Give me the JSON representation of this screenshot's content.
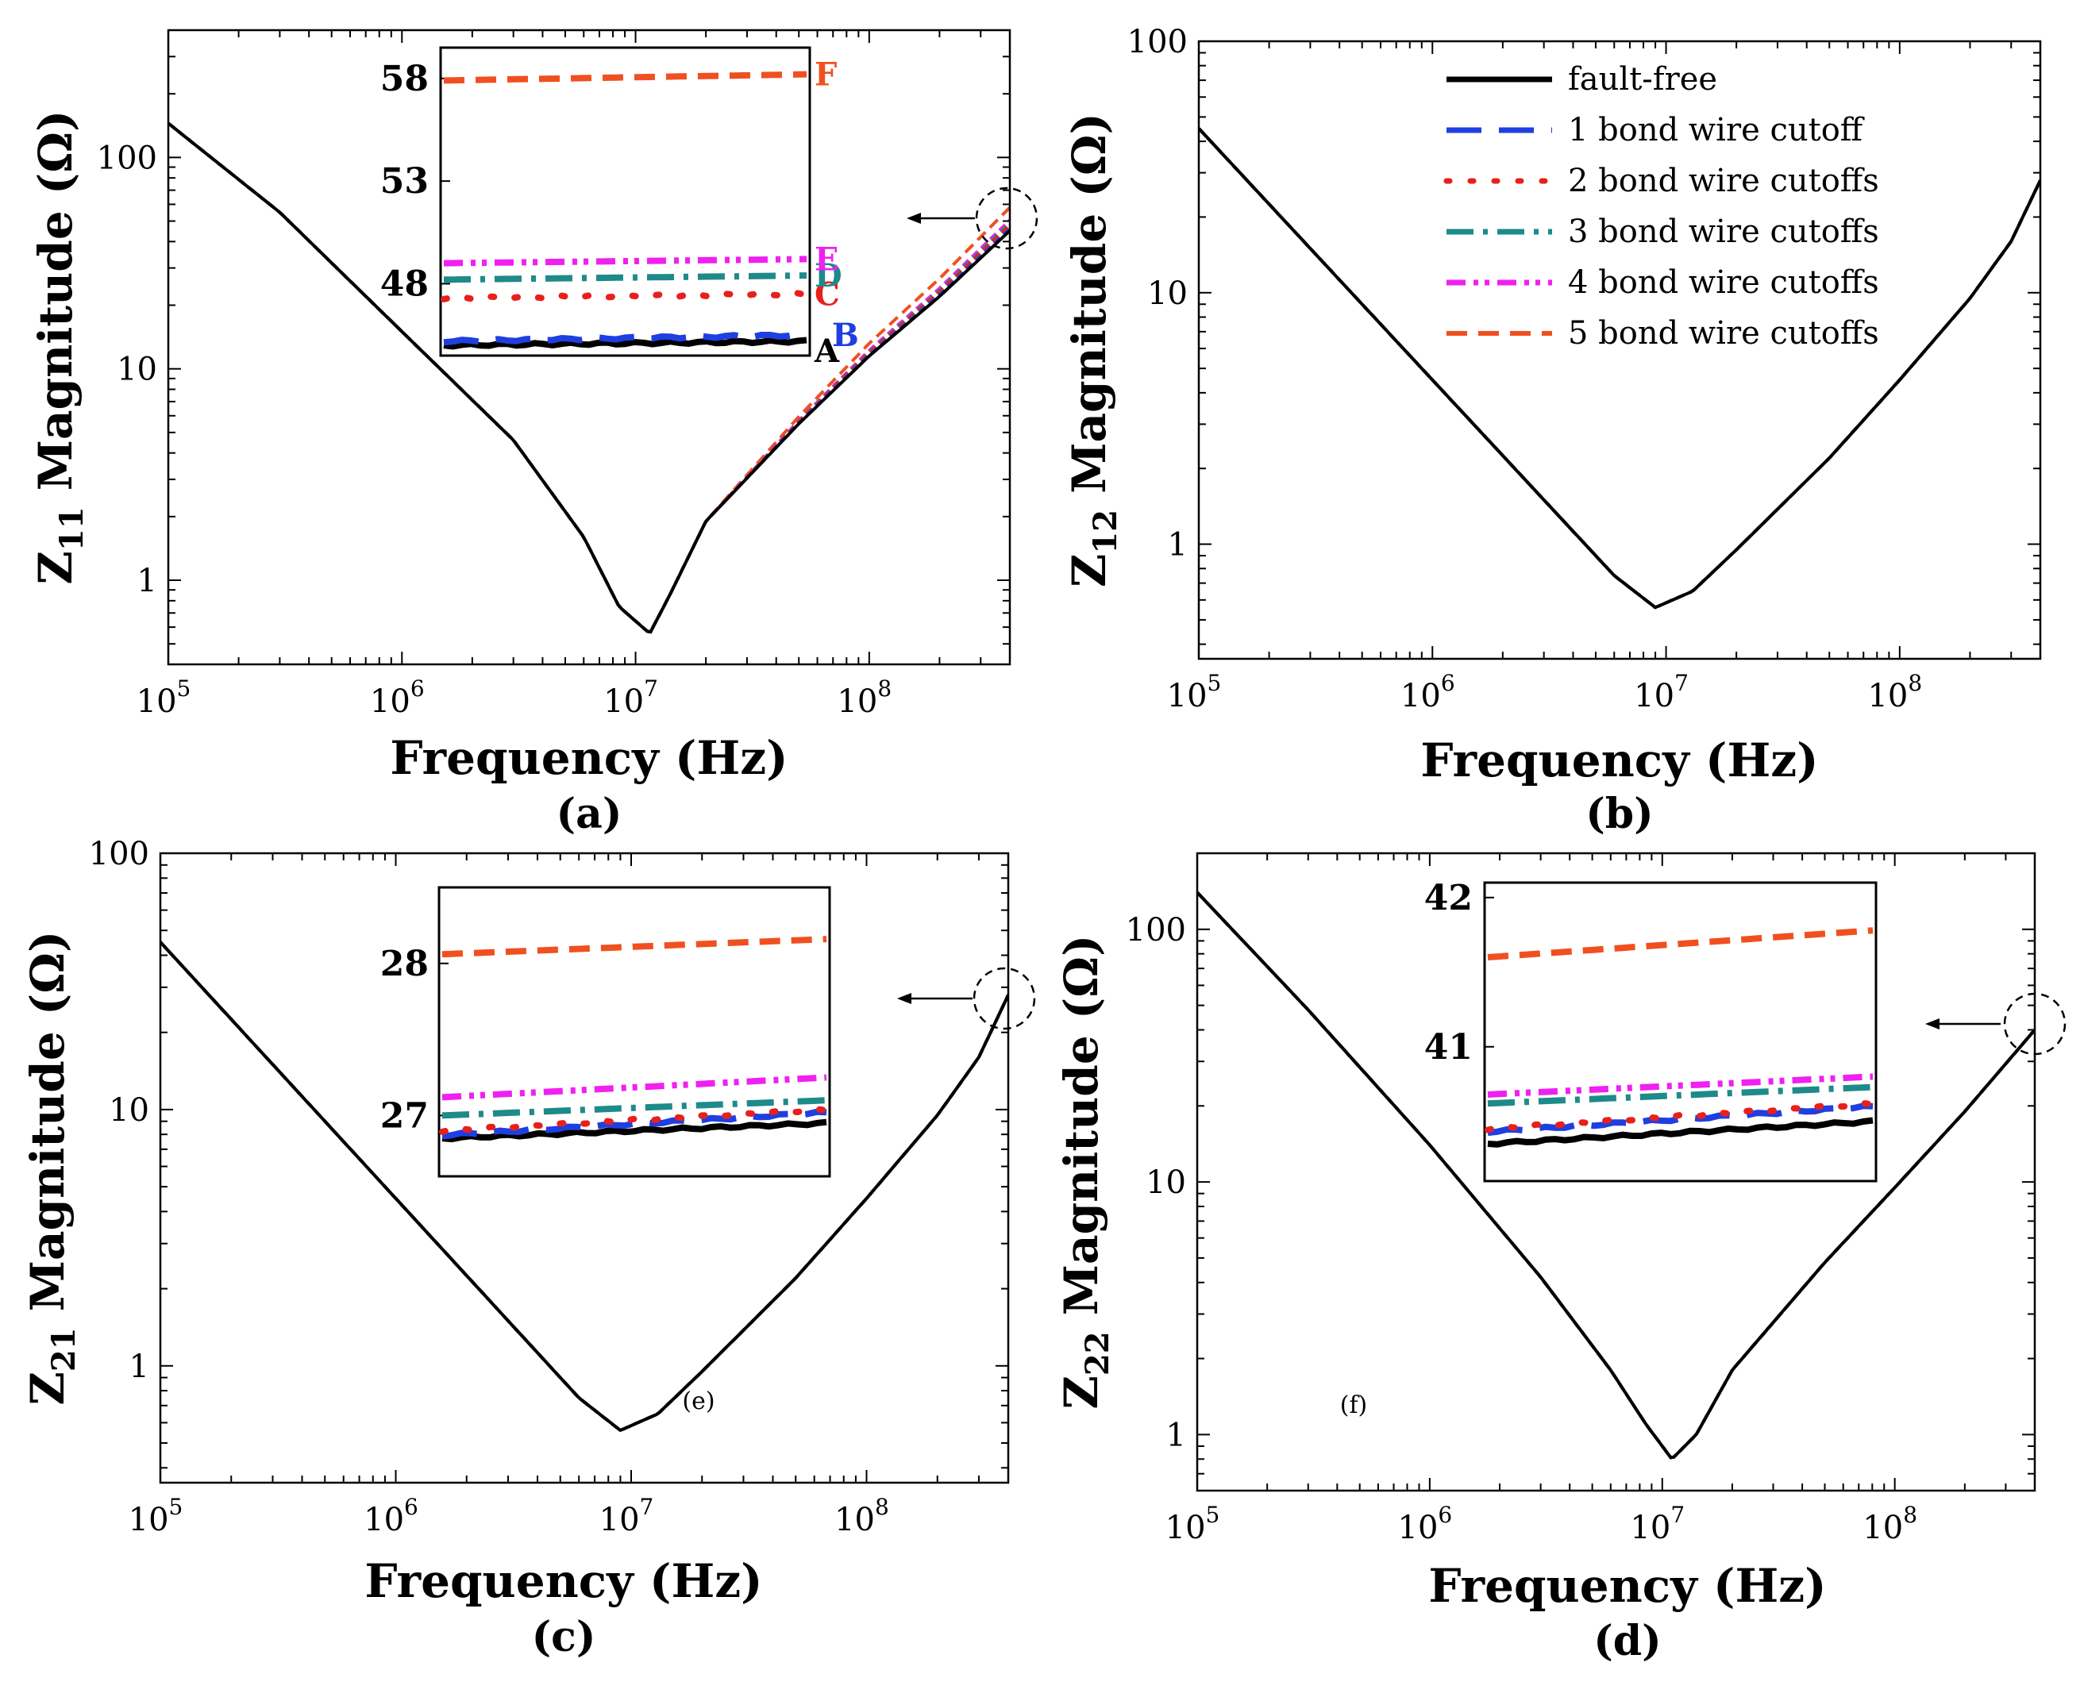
{
  "figure": {
    "legend": {
      "entries": [
        {
          "name": "fault-free",
          "color": "#000000"
        },
        {
          "name": "1 bond wire cutoff",
          "color": "#1f3fe0"
        },
        {
          "name": "2 bond wire cutoffs",
          "color": "#e8201c"
        },
        {
          "name": "3 bond wire cutoffs",
          "color": "#1e8a8a"
        },
        {
          "name": "4 bond wire cutoffs",
          "color": "#f020f0"
        },
        {
          "name": "5 bond wire cutoffs",
          "color": "#f05020"
        }
      ]
    }
  },
  "chart_data": [
    {
      "type": "line",
      "panel_label": "(a)",
      "ylabel_main": "Z",
      "ylabel_sub": "11",
      "ylabel_rest": " Magnitude (Ω)",
      "xlabel": "Frequency (Hz)",
      "x_scale": "log",
      "y_scale": "log",
      "xlim": [
        100000,
        400000000
      ],
      "ylim": [
        0.4,
        400
      ],
      "x_ticks": [
        {
          "value": 100000,
          "label": "10",
          "exp": "5"
        },
        {
          "value": 1000000,
          "label": "10",
          "exp": "6"
        },
        {
          "value": 10000000,
          "label": "10",
          "exp": "7"
        },
        {
          "value": 100000000,
          "label": "10",
          "exp": "8"
        }
      ],
      "y_ticks": [
        {
          "value": 1,
          "label": "1"
        },
        {
          "value": 10,
          "label": "10"
        },
        {
          "value": 100,
          "label": "100"
        }
      ],
      "base_curve": {
        "x": [
          100000,
          300000,
          1000000,
          3000000,
          6000000,
          8500000,
          11500000,
          14000000,
          20000000,
          50000000,
          100000000,
          200000000,
          400000000
        ],
        "y": [
          145,
          55,
          15,
          4.6,
          1.6,
          0.75,
          0.56,
          0.85,
          1.9,
          5.5,
          11.5,
          22,
          45
        ]
      },
      "series_end_values": [
        45,
        46,
        48,
        49,
        50.5,
        58
      ],
      "series_deviation_start": 20000000,
      "inset": {
        "yticks": [
          {
            "value": 48,
            "label": "48"
          },
          {
            "value": 53,
            "label": "53"
          },
          {
            "value": 58,
            "label": "58"
          }
        ],
        "ylim": [
          44.5,
          59.5
        ],
        "series": [
          {
            "marker": "A",
            "y_start": 45.0,
            "y_end": 45.2
          },
          {
            "marker": "B",
            "y_start": 45.2,
            "y_end": 45.5
          },
          {
            "marker": "C",
            "y_start": 47.3,
            "y_end": 47.5
          },
          {
            "marker": "D",
            "y_start": 48.2,
            "y_end": 48.4
          },
          {
            "marker": "E",
            "y_start": 49.0,
            "y_end": 49.2
          },
          {
            "marker": "F",
            "y_start": 57.9,
            "y_end": 58.2
          }
        ]
      },
      "annotation": ""
    },
    {
      "type": "line",
      "panel_label": "(b)",
      "ylabel_main": "Z",
      "ylabel_sub": "12",
      "ylabel_rest": " Magnitude (Ω)",
      "xlabel": "Frequency (Hz)",
      "x_scale": "log",
      "y_scale": "log",
      "xlim": [
        100000,
        400000000
      ],
      "ylim": [
        0.35,
        100
      ],
      "x_ticks": [
        {
          "value": 100000,
          "label": "10",
          "exp": "5"
        },
        {
          "value": 1000000,
          "label": "10",
          "exp": "6"
        },
        {
          "value": 10000000,
          "label": "10",
          "exp": "7"
        },
        {
          "value": 100000000,
          "label": "10",
          "exp": "8"
        }
      ],
      "y_ticks": [
        {
          "value": 1,
          "label": "1"
        },
        {
          "value": 10,
          "label": "10"
        },
        {
          "value": 100,
          "label": "100"
        }
      ],
      "base_curve": {
        "x": [
          100000,
          300000,
          1000000,
          3000000,
          6000000,
          9000000,
          13000000,
          20000000,
          50000000,
          100000000,
          200000000,
          300000000,
          400000000
        ],
        "y": [
          45,
          15,
          4.5,
          1.5,
          0.75,
          0.56,
          0.65,
          0.95,
          2.2,
          4.5,
          9.5,
          16,
          28
        ]
      },
      "series_end_values": [
        28,
        28,
        28,
        28,
        28,
        28
      ],
      "series_deviation_start": 300000000,
      "annotation": ""
    },
    {
      "type": "line",
      "panel_label": "(c)",
      "ylabel_main": "Z",
      "ylabel_sub": "21",
      "ylabel_rest": " Magnitude (Ω)",
      "xlabel": "Frequency (Hz)",
      "x_scale": "log",
      "y_scale": "log",
      "xlim": [
        100000,
        400000000
      ],
      "ylim": [
        0.35,
        100
      ],
      "x_ticks": [
        {
          "value": 100000,
          "label": "10",
          "exp": "5"
        },
        {
          "value": 1000000,
          "label": "10",
          "exp": "6"
        },
        {
          "value": 10000000,
          "label": "10",
          "exp": "7"
        },
        {
          "value": 100000000,
          "label": "10",
          "exp": "8"
        }
      ],
      "y_ticks": [
        {
          "value": 1,
          "label": "1"
        },
        {
          "value": 10,
          "label": "10"
        },
        {
          "value": 100,
          "label": "100"
        }
      ],
      "base_curve": {
        "x": [
          100000,
          300000,
          1000000,
          3000000,
          6000000,
          9000000,
          13000000,
          20000000,
          50000000,
          100000000,
          200000000,
          300000000,
          400000000
        ],
        "y": [
          45,
          15,
          4.5,
          1.5,
          0.75,
          0.56,
          0.65,
          0.95,
          2.2,
          4.5,
          9.5,
          16,
          28
        ]
      },
      "series_end_values": [
        28,
        28,
        28,
        28,
        28,
        28
      ],
      "series_deviation_start": 300000000,
      "inset": {
        "yticks": [
          {
            "value": 27,
            "label": "27"
          },
          {
            "value": 28,
            "label": "28"
          }
        ],
        "ylim": [
          26.6,
          28.5
        ],
        "series": [
          {
            "y_start": 26.85,
            "y_end": 26.95
          },
          {
            "y_start": 26.87,
            "y_end": 27.02
          },
          {
            "y_start": 26.9,
            "y_end": 27.04
          },
          {
            "y_start": 27.0,
            "y_end": 27.1
          },
          {
            "y_start": 27.12,
            "y_end": 27.25
          },
          {
            "y_start": 28.06,
            "y_end": 28.16
          }
        ]
      },
      "annotation": "(e)"
    },
    {
      "type": "line",
      "panel_label": "(d)",
      "ylabel_main": "Z",
      "ylabel_sub": "22",
      "ylabel_rest": " Magnitude (Ω)",
      "xlabel": "Frequency (Hz)",
      "x_scale": "log",
      "y_scale": "log",
      "xlim": [
        100000,
        400000000
      ],
      "ylim": [
        0.6,
        200
      ],
      "x_ticks": [
        {
          "value": 100000,
          "label": "10",
          "exp": "5"
        },
        {
          "value": 1000000,
          "label": "10",
          "exp": "6"
        },
        {
          "value": 10000000,
          "label": "10",
          "exp": "7"
        },
        {
          "value": 100000000,
          "label": "10",
          "exp": "8"
        }
      ],
      "y_ticks": [
        {
          "value": 1,
          "label": "1"
        },
        {
          "value": 10,
          "label": "10"
        },
        {
          "value": 100,
          "label": "100"
        }
      ],
      "base_curve": {
        "x": [
          100000,
          300000,
          1000000,
          3000000,
          6000000,
          8500000,
          11000000,
          14000000,
          20000000,
          50000000,
          100000000,
          200000000,
          400000000
        ],
        "y": [
          140,
          48,
          14,
          4.2,
          1.8,
          1.1,
          0.8,
          1.0,
          1.8,
          4.8,
          9.5,
          19,
          40
        ]
      },
      "series_end_values": [
        40,
        40,
        40,
        40,
        40,
        40
      ],
      "series_deviation_start": 300000000,
      "inset": {
        "yticks": [
          {
            "value": 41,
            "label": "41"
          },
          {
            "value": 42,
            "label": "42"
          }
        ],
        "ylim": [
          40.1,
          42.1
        ],
        "series": [
          {
            "y_start": 40.35,
            "y_end": 40.5
          },
          {
            "y_start": 40.43,
            "y_end": 40.6
          },
          {
            "y_start": 40.45,
            "y_end": 40.62
          },
          {
            "y_start": 40.62,
            "y_end": 40.73
          },
          {
            "y_start": 40.68,
            "y_end": 40.8
          },
          {
            "y_start": 41.6,
            "y_end": 41.78
          }
        ]
      },
      "annotation": "(f)"
    }
  ]
}
